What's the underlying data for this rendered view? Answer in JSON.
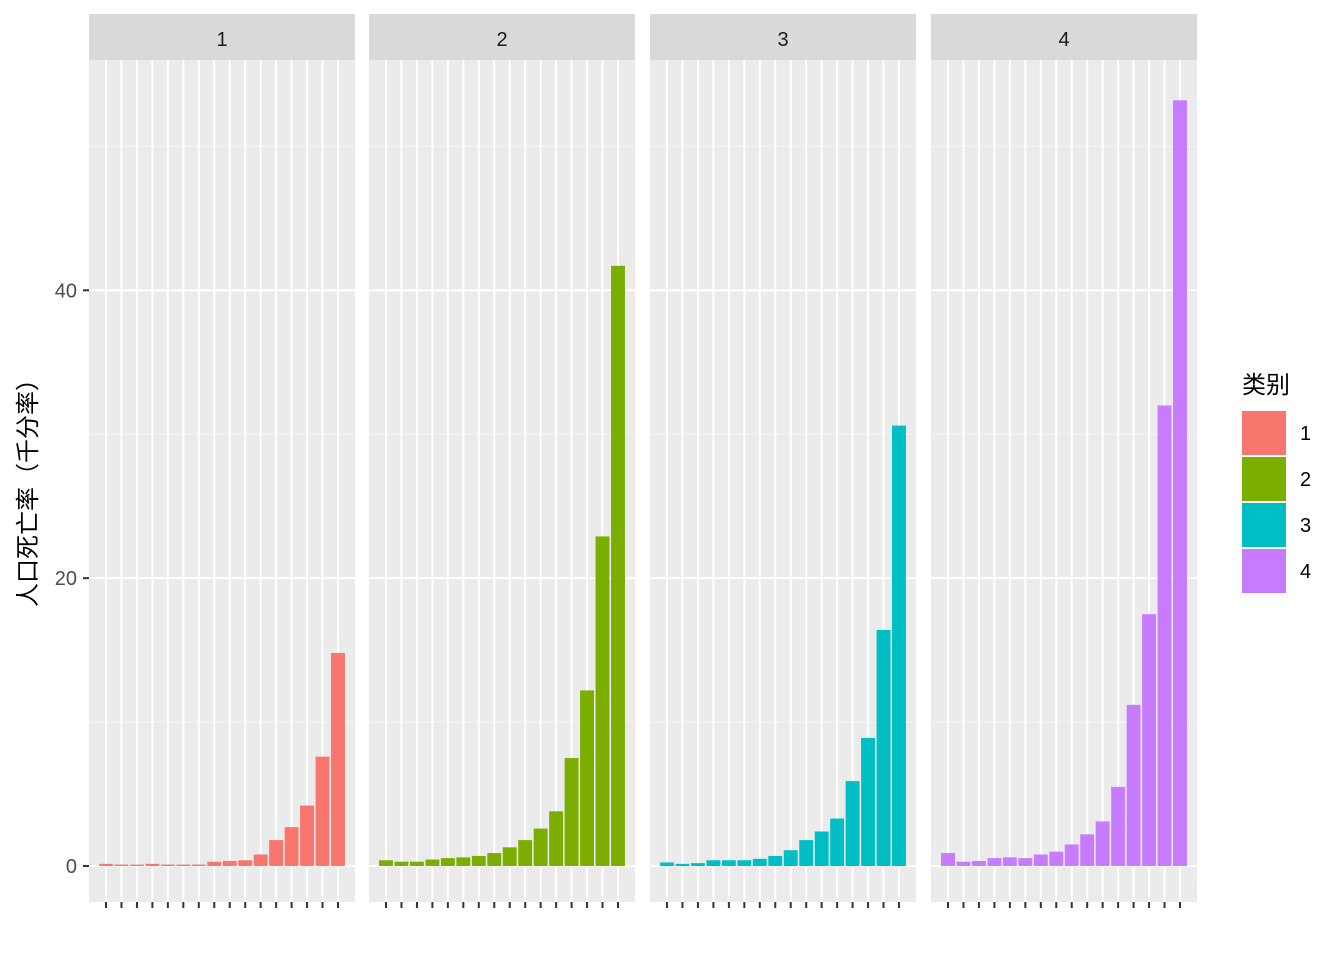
{
  "chart_data": {
    "type": "bar",
    "title": "",
    "ylabel": "人口死亡率（千分率）",
    "xlabel": "",
    "ylim": [
      -2.5,
      56
    ],
    "y_ticks": [
      0,
      20,
      40
    ],
    "x_tick_labels_visible": false,
    "bars_per_panel": 16,
    "grid": true,
    "legend_position": "right",
    "legend_title": "类别",
    "panels": [
      {
        "name": "1",
        "color": "#F8766D",
        "values": [
          0.15,
          0.1,
          0.1,
          0.15,
          0.1,
          0.1,
          0.1,
          0.3,
          0.35,
          0.4,
          0.8,
          1.8,
          2.7,
          4.2,
          7.6,
          14.8
        ]
      },
      {
        "name": "2",
        "color": "#7CAE00",
        "values": [
          0.4,
          0.3,
          0.3,
          0.45,
          0.55,
          0.6,
          0.7,
          0.9,
          1.3,
          1.8,
          2.6,
          3.8,
          7.5,
          12.2,
          22.9,
          41.7
        ]
      },
      {
        "name": "3",
        "color": "#00BFC4",
        "values": [
          0.25,
          0.15,
          0.2,
          0.4,
          0.4,
          0.4,
          0.5,
          0.7,
          1.1,
          1.8,
          2.4,
          3.3,
          5.9,
          8.9,
          16.4,
          30.6
        ]
      },
      {
        "name": "4",
        "color": "#C77CFF",
        "values": [
          0.9,
          0.3,
          0.35,
          0.55,
          0.6,
          0.55,
          0.8,
          1.0,
          1.5,
          2.2,
          3.1,
          5.5,
          11.2,
          17.5,
          32.0,
          53.2
        ]
      }
    ]
  }
}
